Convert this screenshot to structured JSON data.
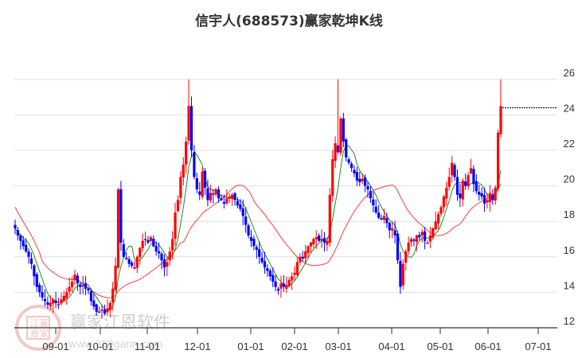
{
  "title": "信宇人(688573)赢家乾坤K线",
  "watermark": {
    "brand": "赢家江恩软件",
    "url": "www.360gann.com",
    "seal_chars": [
      "江",
      "赢",
      "恩",
      "家"
    ]
  },
  "colors": {
    "up": "#ff0000",
    "down": "#0000ff",
    "neutral": "#800080",
    "ma_short": "#228b22",
    "ma_long": "#ff3b3b",
    "grid": "#e0e0e0",
    "axis": "#333333",
    "ref_line": "#000000"
  },
  "chart_data": {
    "type": "candlestick",
    "title": "信宇人(688573)赢家乾坤K线",
    "xlabel": "",
    "ylabel": "",
    "ylim": [
      12,
      26.5
    ],
    "yticks": [
      12,
      14,
      16,
      18,
      20,
      22,
      24,
      26
    ],
    "xticks": [
      "09-01",
      "10-01",
      "11-01",
      "12-01",
      "01-01",
      "02-01",
      "03-01",
      "04-01",
      "05-01",
      "06-01",
      "07-01"
    ],
    "xtick_pos": [
      70,
      126,
      185,
      248,
      315,
      370,
      425,
      492,
      553,
      613,
      676
    ],
    "grid": true,
    "reference_line": {
      "value": 24.4,
      "style": "dashed"
    },
    "series": [
      {
        "name": "close",
        "values": [
          17.6,
          17.2,
          16.9,
          16.6,
          16.3,
          16.0,
          15.6,
          14.9,
          14.3,
          14.0,
          13.7,
          13.5,
          13.3,
          13.4,
          13.6,
          13.4,
          13.3,
          13.6,
          13.8,
          14.0,
          14.3,
          14.6,
          15.0,
          14.5,
          14.3,
          14.4,
          14.2,
          14.1,
          13.5,
          13.2,
          12.9,
          12.9,
          13.0,
          12.8,
          13.1,
          13.4,
          14.2,
          15.5,
          19.8,
          16.8,
          16.0,
          15.9,
          15.6,
          15.5,
          15.4,
          16.0,
          16.5,
          16.9,
          17.0,
          16.8,
          17.1,
          16.6,
          16.3,
          16.2,
          15.8,
          15.4,
          15.7,
          16.3,
          17.0,
          18.5,
          19.2,
          20.5,
          21.2,
          22.5,
          24.5,
          22.0,
          20.5,
          19.8,
          19.5,
          20.8,
          19.9,
          19.2,
          19.6,
          19.5,
          19.8,
          19.3,
          19.2,
          19.0,
          19.3,
          19.4,
          19.5,
          19.2,
          18.9,
          18.7,
          18.3,
          17.8,
          17.2,
          16.9,
          16.6,
          16.4,
          16.0,
          15.7,
          15.4,
          15.2,
          14.9,
          14.6,
          14.3,
          14.1,
          14.5,
          14.3,
          14.4,
          14.7,
          14.9,
          15.1,
          15.7,
          16.0,
          15.9,
          16.3,
          16.6,
          16.8,
          17.0,
          17.1,
          16.9,
          17.0,
          16.8,
          16.9,
          19.5,
          21.5,
          22.4,
          21.9,
          23.8,
          22.5,
          21.6,
          21.3,
          21.0,
          20.7,
          20.3,
          20.2,
          20.4,
          20.0,
          19.8,
          19.3,
          18.9,
          18.5,
          18.2,
          18.1,
          18.3,
          17.9,
          17.5,
          17.6,
          17.2,
          15.8,
          14.3,
          15.6,
          16.3,
          16.8,
          17.0,
          16.9,
          17.2,
          17.1,
          17.4,
          16.9,
          16.8,
          17.2,
          17.6,
          18.0,
          18.4,
          18.8,
          19.4,
          19.9,
          20.5,
          21.3,
          20.5,
          19.5,
          19.3,
          20.3,
          20.0,
          20.6,
          21.0,
          20.1,
          19.7,
          19.5,
          19.4,
          19.0,
          19.2,
          19.6,
          19.2,
          19.9,
          23.0,
          24.5
        ]
      },
      {
        "name": "MA_short",
        "color": "#228b22"
      },
      {
        "name": "MA_long",
        "color": "#ff3b3b"
      }
    ]
  }
}
